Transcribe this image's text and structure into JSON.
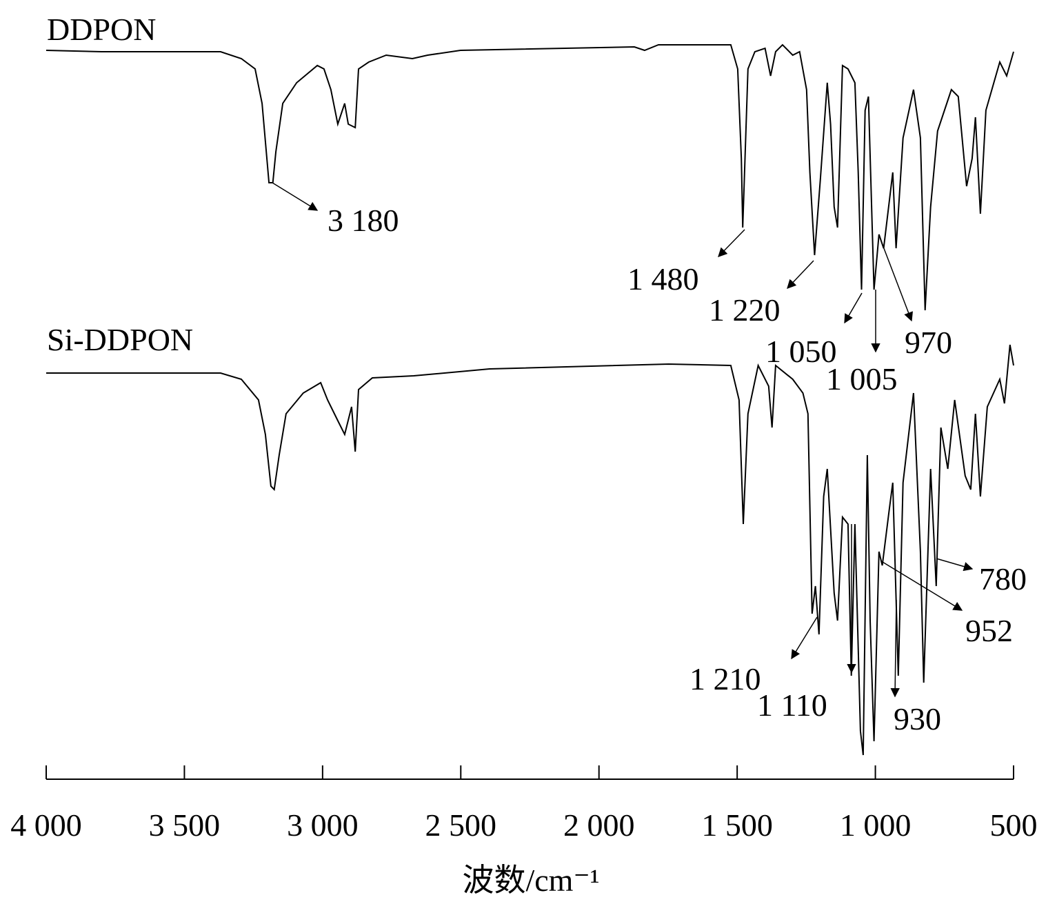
{
  "chart_data": {
    "type": "line",
    "x_label": "波数/cm⁻¹",
    "xlim": [
      4000,
      500
    ],
    "xticks": [
      {
        "value": 4000,
        "label": "4 000"
      },
      {
        "value": 3500,
        "label": "3 500"
      },
      {
        "value": 3000,
        "label": "3 000"
      },
      {
        "value": 2500,
        "label": "2 500"
      },
      {
        "value": 2000,
        "label": "2 000"
      },
      {
        "value": 1500,
        "label": "1 500"
      },
      {
        "value": 1000,
        "label": "1 000"
      },
      {
        "value": 500,
        "label": "500"
      }
    ],
    "ylim": [
      0,
      110
    ],
    "series": [
      {
        "name": "DDPON",
        "color": "#000000",
        "x": [
          4000,
          3800,
          3369,
          3294,
          3244,
          3219,
          3194,
          3180,
          3169,
          3144,
          3094,
          3019,
          2995,
          2970,
          2945,
          2920,
          2907,
          2882,
          2870,
          2833,
          2770,
          2675,
          2620,
          2501,
          1872,
          1835,
          1785,
          1523,
          1498,
          1485,
          1480,
          1461,
          1436,
          1399,
          1379,
          1361,
          1336,
          1299,
          1274,
          1249,
          1237,
          1220,
          1199,
          1174,
          1162,
          1149,
          1137,
          1119,
          1099,
          1074,
          1062,
          1050,
          1037,
          1025,
          1005,
          987,
          970,
          937,
          925,
          900,
          862,
          837,
          820,
          800,
          775,
          750,
          725,
          700,
          670,
          650,
          638,
          620,
          600,
          550,
          525,
          500
        ],
        "values": [
          105.7,
          105.5,
          105.5,
          104.5,
          103,
          98,
          86.5,
          86.5,
          91,
          98,
          101,
          103.5,
          103,
          100,
          95,
          98,
          95,
          94.5,
          103,
          104,
          105,
          104.5,
          105,
          105.7,
          106.2,
          105.7,
          106.5,
          106.5,
          103,
          90,
          80,
          103,
          105.5,
          106,
          102,
          105.5,
          106.5,
          105,
          105.5,
          100,
          88,
          76,
          87,
          101,
          95,
          83,
          80,
          103.5,
          103,
          101,
          88,
          71,
          97,
          99,
          71,
          79,
          77,
          88,
          77,
          93,
          100,
          93,
          68,
          83,
          94,
          97,
          100,
          99,
          86,
          90,
          96,
          82,
          97,
          104,
          102,
          105.5
        ]
      },
      {
        "name": "Si-DDPON",
        "color": "#000000",
        "x": [
          4000,
          3369,
          3294,
          3232,
          3207,
          3187,
          3175,
          3157,
          3132,
          3070,
          3007,
          2982,
          2945,
          2920,
          2895,
          2882,
          2870,
          2820,
          2670,
          2396,
          1748,
          1523,
          1493,
          1478,
          1461,
          1424,
          1386,
          1374,
          1361,
          1299,
          1262,
          1244,
          1229,
          1217,
          1204,
          1187,
          1174,
          1149,
          1137,
          1119,
          1099,
          1087,
          1074,
          1054,
          1044,
          1029,
          1019,
          1005,
          987,
          975,
          950,
          937,
          917,
          900,
          862,
          837,
          825,
          800,
          780,
          763,
          738,
          713,
          675,
          655,
          638,
          620,
          595,
          550,
          533,
          513,
          500
        ],
        "values": [
          58.9,
          58.9,
          58,
          55,
          50,
          42.5,
          42,
          47,
          53,
          56,
          57.5,
          55,
          52,
          50,
          54,
          47.5,
          56.5,
          58.2,
          58.5,
          59.5,
          60.2,
          60,
          55,
          37,
          53,
          60,
          57,
          51,
          60,
          58,
          56,
          53,
          24,
          28,
          21,
          41,
          45,
          27,
          23,
          38,
          37,
          15,
          37,
          7,
          3.5,
          47,
          23,
          5.5,
          33,
          31,
          39,
          43,
          15,
          43,
          56,
          33,
          14,
          45,
          28,
          51,
          45,
          55,
          44,
          42,
          53,
          41,
          54,
          58,
          54.5,
          63,
          60
        ]
      }
    ],
    "annotations": [
      "3 180",
      "1 480",
      "1 220",
      "1 050",
      "1 005",
      "970",
      "780",
      "952",
      "1 210",
      "1 110",
      "930"
    ]
  }
}
